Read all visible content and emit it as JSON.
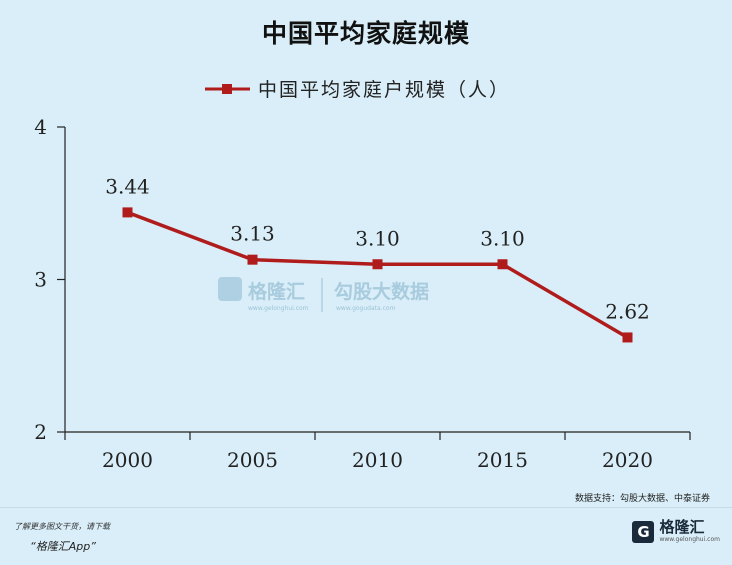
{
  "page": {
    "title": "中国平均家庭规模",
    "source": "数据支持：勾股大数据、中泰证券",
    "footer_line1": "了解更多图文干货，请下载",
    "footer_line2": "“格隆汇App”",
    "brand_icon": "G",
    "brand_name": "格隆汇",
    "brand_url": "www.gelonghui.com"
  },
  "watermark": {
    "left_name": "格隆汇",
    "left_url": "www.gelonghui.com",
    "right_name": "勾股大数据",
    "right_url": "www.gogudata.com"
  },
  "colors": {
    "series": "#b01c1c",
    "background": "#d9eef8",
    "axis": "#222222"
  },
  "chart_data": {
    "type": "line",
    "categories": [
      "2000",
      "2005",
      "2010",
      "2015",
      "2020"
    ],
    "series": [
      {
        "name": "中国平均家庭户规模（人）",
        "values": [
          3.44,
          3.13,
          3.1,
          3.1,
          2.62
        ]
      }
    ],
    "data_labels": [
      "3.44",
      "3.13",
      "3.10",
      "3.10",
      "2.62"
    ],
    "yticks": [
      2,
      3,
      4
    ],
    "ylim": [
      2,
      4
    ],
    "legend_position": "top-center",
    "grid": false
  }
}
